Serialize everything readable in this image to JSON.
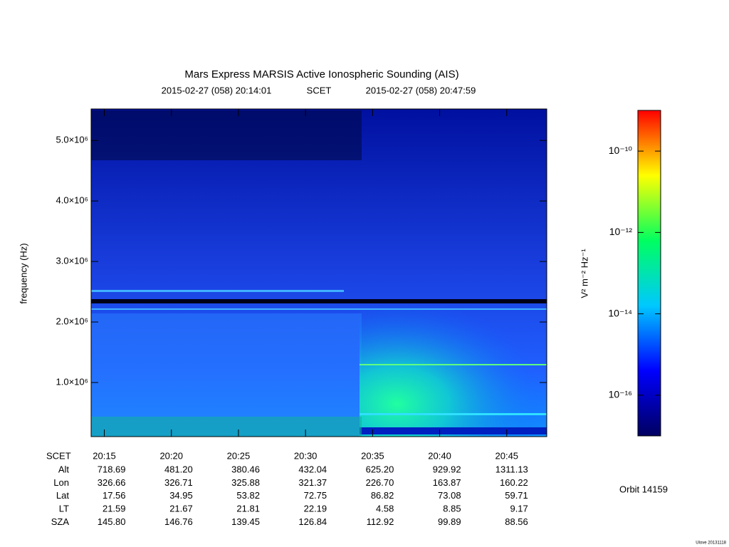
{
  "chart_data": {
    "type": "spectrogram",
    "title": "Mars Express MARSIS Active Ionospheric Sounding (AIS)",
    "start_label": "2015-02-27 (058) 20:14:01",
    "time_label": "SCET",
    "end_label": "2015-02-27 (058) 20:47:59",
    "y_label": "frequency (Hz)",
    "xlim": [
      "2015-02-27T20:14:01",
      "2015-02-27T20:47:59"
    ],
    "xticks": [
      {
        "value": "2015-02-27T20:15:00",
        "label": "20:15"
      },
      {
        "value": "2015-02-27T20:20:00",
        "label": "20:20"
      },
      {
        "value": "2015-02-27T20:25:00",
        "label": "20:25"
      },
      {
        "value": "2015-02-27T20:30:00",
        "label": "20:30"
      },
      {
        "value": "2015-02-27T20:35:00",
        "label": "20:35"
      },
      {
        "value": "2015-02-27T20:40:00",
        "label": "20:40"
      },
      {
        "value": "2015-02-27T20:45:00",
        "label": "20:45"
      }
    ],
    "ylim": [
      106000,
      5520000
    ],
    "yticks": [
      {
        "value": 1000000,
        "label": "1.0×10⁶"
      },
      {
        "value": 2000000,
        "label": "2.0×10⁶"
      },
      {
        "value": 3000000,
        "label": "3.0×10⁶"
      },
      {
        "value": 4000000,
        "label": "4.0×10⁶"
      },
      {
        "value": 5000000,
        "label": "5.0×10⁶"
      }
    ],
    "colorbar": {
      "label": "V² m⁻² Hz⁻¹",
      "log_scale": true,
      "zlim": [
        1e-17,
        1e-09
      ],
      "zticks": [
        {
          "value": 1e-10,
          "label": "10⁻¹⁰"
        },
        {
          "value": 1e-12,
          "label": "10⁻¹²"
        },
        {
          "value": 1e-14,
          "label": "10⁻¹⁴"
        },
        {
          "value": 1e-16,
          "label": "10⁻¹⁶"
        }
      ],
      "colormap": [
        "#000060",
        "#0000ff",
        "#00c8ff",
        "#00ff60",
        "#ffff00",
        "#ff0000"
      ]
    },
    "ephemeris": {
      "header": "SCET",
      "rows": [
        {
          "label": "Alt",
          "values": [
            "718.69",
            "481.20",
            "380.46",
            "432.04",
            "625.20",
            "929.92",
            "1311.13"
          ]
        },
        {
          "label": "Lon",
          "values": [
            "326.66",
            "326.71",
            "325.88",
            "321.37",
            "226.70",
            "163.87",
            "160.22"
          ]
        },
        {
          "label": "Lat",
          "values": [
            "17.56",
            "34.95",
            "53.82",
            "72.75",
            "86.82",
            "73.08",
            "59.71"
          ]
        },
        {
          "label": "LT",
          "values": [
            "21.59",
            "21.67",
            "21.81",
            "22.19",
            "4.58",
            "8.85",
            "9.17"
          ]
        },
        {
          "label": "SZA",
          "values": [
            "145.80",
            "146.76",
            "139.45",
            "126.84",
            "112.92",
            "99.89",
            "88.56"
          ]
        }
      ]
    },
    "orbit": "Orbit 14159",
    "footer": "Ulove 20131118"
  }
}
